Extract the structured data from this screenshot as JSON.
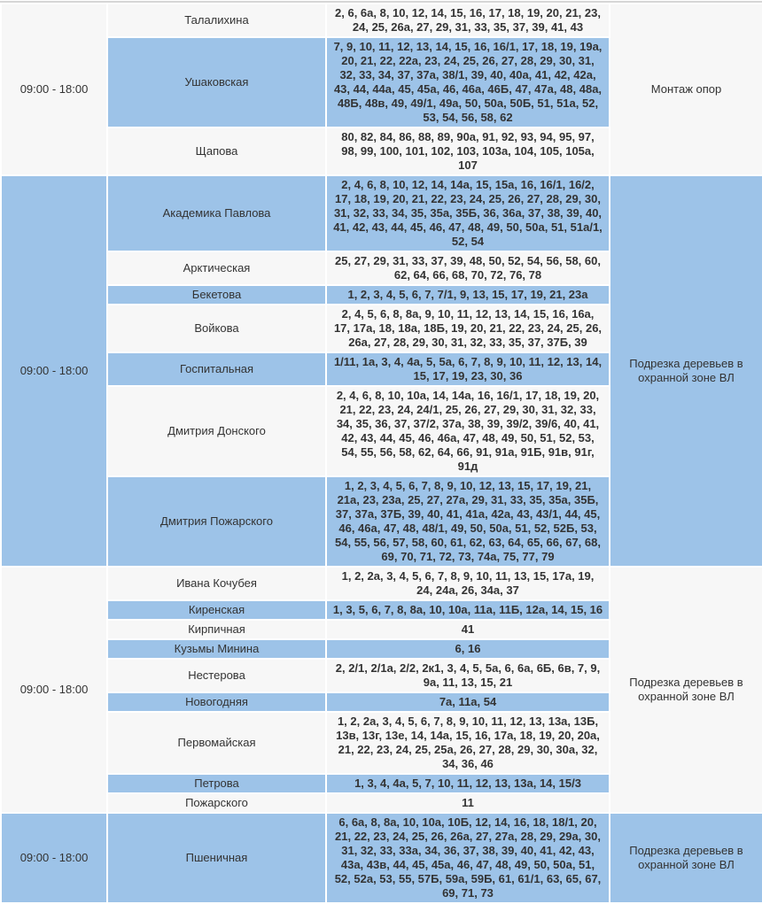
{
  "colors": {
    "stripe_blue": "#9dc3e8",
    "stripe_white": "#f7f7f7",
    "text": "#333333",
    "top_border": "#d6d6d6"
  },
  "table": {
    "sections": [
      {
        "time": "09:00 - 18:00",
        "work": "Монтаж опор",
        "rows": [
          {
            "street": "Талалихина",
            "houses": "2, 6, 6а, 8, 10, 12, 14, 15, 16, 17, 18, 19, 20, 21, 23, 24, 25, 26а, 27, 29, 31, 33, 35, 37, 39, 41, 43"
          },
          {
            "street": "Ушаковская",
            "houses": "7, 9, 10, 11, 12, 13, 14, 15, 16, 16/1, 17, 18, 19, 19а, 20, 21, 22, 22а, 23, 24, 25, 26, 27, 28, 29, 30, 31, 32, 33, 34, 37, 37а, 38/1, 39, 40, 40а, 41, 42, 42а, 43, 44, 44а, 45, 45а, 46, 46а, 46Б, 47, 47а, 48, 48а, 48Б, 48в, 49, 49/1, 49а, 50, 50а, 50Б, 51, 51а, 52, 53, 54, 56, 58, 62"
          },
          {
            "street": "Щапова",
            "houses": "80, 82, 84, 86, 88, 89, 90а, 91, 92, 93, 94, 95, 97, 98, 99, 100, 101, 102, 103, 103а, 104, 105, 105а, 107"
          }
        ]
      },
      {
        "time": "09:00 - 18:00",
        "work": "Подрезка деревьев в охранной зоне ВЛ",
        "rows": [
          {
            "street": "Академика Павлова",
            "houses": "2, 4, 6, 8, 10, 12, 14, 14а, 15, 15а, 16, 16/1, 16/2, 17, 18, 19, 20, 21, 22, 23, 24, 25, 26, 27, 28, 29, 30, 31, 32, 33, 34, 35, 35а, 35Б, 36, 36а, 37, 38, 39, 40, 41, 42, 43, 44, 45, 46, 47, 48, 49, 50, 50а, 51, 51а/1, 52, 54"
          },
          {
            "street": "Арктическая",
            "houses": "25, 27, 29, 31, 33, 37, 39, 48, 50, 52, 54, 56, 58, 60, 62, 64, 66, 68, 70, 72, 76, 78"
          },
          {
            "street": "Бекетова",
            "houses": "1, 2, 3, 4, 5, 6, 7, 7/1, 9, 13, 15, 17, 19, 21, 23а"
          },
          {
            "street": "Войкова",
            "houses": "2, 4, 5, 6, 8, 8а, 9, 10, 11, 12, 13, 14, 15, 16, 16а, 17, 17а, 18, 18а, 18Б, 19, 20, 21, 22, 23, 24, 25, 26, 26а, 27, 28, 29, 30, 31, 32, 33, 35, 37, 37Б, 39"
          },
          {
            "street": "Госпитальная",
            "houses": "1/11, 1а, 3, 4, 4а, 5, 5а, 6, 7, 8, 9, 10, 11, 12, 13, 14, 15, 17, 19, 23, 30, 36"
          },
          {
            "street": "Дмитрия Донского",
            "houses": "2, 4, 6, 8, 10, 10а, 14, 14а, 16, 16/1, 17, 18, 19, 20, 21, 22, 23, 24, 24/1, 25, 26, 27, 29, 30, 31, 32, 33, 34, 35, 36, 37, 37/2, 37а, 38, 39, 39/2, 39/6, 40, 41, 42, 43, 44, 45, 46, 46а, 47, 48, 49, 50, 51, 52, 53, 54, 55, 56, 58, 62, 64, 66, 91, 91а, 91Б, 91в, 91г, 91д"
          },
          {
            "street": "Дмитрия Пожарского",
            "houses": "1, 2, 3, 4, 5, 6, 7, 8, 9, 10, 12, 13, 15, 17, 19, 21, 21а, 23, 23а, 25, 27, 27а, 29, 31, 33, 35, 35а, 35Б, 37, 37а, 37Б, 39, 40, 41, 41а, 42а, 43, 43/1, 44, 45, 46, 46а, 47, 48, 48/1, 49, 50, 50а, 51, 52, 52Б, 53, 54, 55, 56, 57, 58, 60, 61, 62, 63, 64, 65, 66, 67, 68, 69, 70, 71, 72, 73, 74а, 75, 77, 79"
          }
        ]
      },
      {
        "time": "09:00 - 18:00",
        "work": "Подрезка деревьев в охранной зоне ВЛ",
        "rows": [
          {
            "street": "Ивана Кочубея",
            "houses": "1, 2, 2а, 3, 4, 5, 6, 7, 8, 9, 10, 11, 13, 15, 17а, 19, 24, 24а, 26, 34а, 37"
          },
          {
            "street": "Киренская",
            "houses": "1, 3, 5, 6, 7, 8, 8а, 10, 10а, 11а, 11Б, 12а, 14, 15, 16"
          },
          {
            "street": "Кирпичная",
            "houses": "41"
          },
          {
            "street": "Кузьмы Минина",
            "houses": "6, 16"
          },
          {
            "street": "Нестерова",
            "houses": "2, 2/1, 2/1а, 2/2, 2к1, 3, 4, 5, 5а, 6, 6а, 6Б, 6в, 7, 9, 9а, 11, 13, 15, 21"
          },
          {
            "street": "Новогодняя",
            "houses": "7а, 11а, 54"
          },
          {
            "street": "Первомайская",
            "houses": "1, 2, 2а, 3, 4, 5, 6, 7, 8, 9, 10, 11, 12, 13, 13а, 13Б, 13в, 13г, 13е, 14, 14а, 15, 16, 17а, 18, 19, 20, 20а, 21, 22, 23, 24, 25, 25а, 26, 27, 28, 29, 30, 30а, 32, 34, 36, 46"
          },
          {
            "street": "Петрова",
            "houses": "1, 3, 4, 4а, 5, 7, 10, 11, 12, 13, 13а, 14, 15/3"
          },
          {
            "street": "Пожарского",
            "houses": "11"
          }
        ]
      },
      {
        "time": "09:00 - 18:00",
        "work": "Подрезка деревьев в охранной зоне ВЛ",
        "rows": [
          {
            "street": "Пшеничная",
            "houses": "6, 6а, 8, 8а, 10, 10а, 10Б, 12, 14, 16, 18, 18/1, 20, 21, 22, 23, 24, 25, 26, 26а, 27, 27а, 28, 29, 29а, 30, 31, 32, 33, 33а, 34, 36, 37, 38, 39, 40, 41, 42, 43, 43а, 43в, 44, 45, 45а, 46, 47, 48, 49, 50, 50а, 51, 52, 52а, 53, 55, 57Б, 59а, 59Б, 61, 61/1, 63, 65, 67, 69, 71, 73"
          }
        ]
      }
    ]
  }
}
